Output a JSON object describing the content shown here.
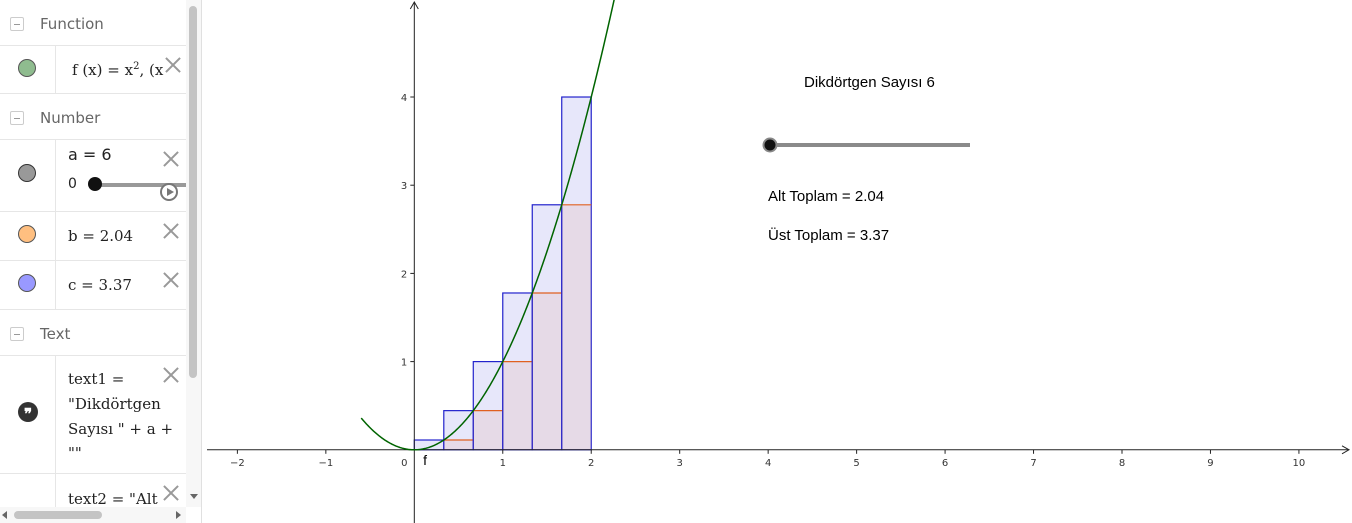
{
  "algebra": {
    "groups": {
      "function": "Function",
      "number": "Number",
      "text": "Text"
    },
    "f": {
      "lhs": "f (x)  =  x",
      "exp": "2",
      "tail": ",    (x",
      "color": "#8fbc8f"
    },
    "a": {
      "expr": "a = 6",
      "slider_min": "0",
      "color": "#999999",
      "fraction": 0.0
    },
    "b": {
      "expr": "b  =  2.04",
      "color": "#ffbf80"
    },
    "c": {
      "expr": "c  =  3.37",
      "color": "#9999ff"
    },
    "text1": {
      "lines": [
        "text1  =",
        "\"Dikdörtgen",
        "Sayısı \"  +  a  +",
        "\"\""
      ]
    },
    "text2": {
      "expr": "text2  =  \"Alt"
    }
  },
  "graphics": {
    "title_text": "Dikdörtgen Sayısı 6",
    "alt_text": "Alt Toplam = 2.04",
    "ust_text": "Üst Toplam = 3.37",
    "function_label": "f",
    "slider_fraction": 0.0,
    "curve_color": "#006400",
    "upper_color": "#2222cc",
    "lower_color": "#e06020",
    "x_ticks": [
      "-2",
      "-1",
      "0",
      "1",
      "2",
      "3",
      "4",
      "5",
      "6",
      "7",
      "8",
      "9",
      "10"
    ],
    "y_ticks": [
      "1",
      "2",
      "3",
      "4"
    ]
  },
  "chart_data": {
    "type": "area",
    "function": "x^2",
    "rectangles": 6,
    "interval": [
      0,
      2
    ],
    "lower_sum": 2.04,
    "upper_sum": 3.37,
    "lower_heights": [
      0,
      0.111,
      0.444,
      1,
      1.778,
      2.778
    ],
    "upper_heights": [
      0.111,
      0.444,
      1,
      1.778,
      2.778,
      4
    ],
    "xlim": [
      -2.4,
      10.6
    ],
    "ylim": [
      -0.83,
      5.1
    ],
    "grid": false
  }
}
